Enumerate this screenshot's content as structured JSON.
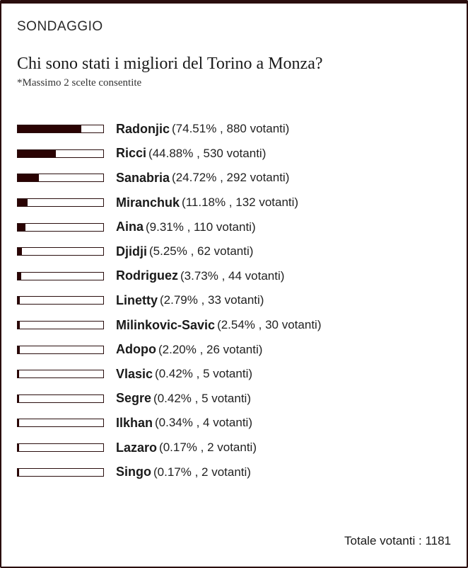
{
  "poll": {
    "label": "SONDAGGIO",
    "question": "Chi sono stati i migliori del Torino a Monza?",
    "note": "*Massimo 2 scelte consentite",
    "total_label": "Totale votanti",
    "total_separator": ":",
    "total_value": "1181",
    "bar_color": "#2a0303",
    "options": [
      {
        "name": "Radonjic",
        "stats": "(74.51% , 880 votanti)",
        "percent": 74.51
      },
      {
        "name": "Ricci",
        "stats": "(44.88% , 530 votanti)",
        "percent": 44.88
      },
      {
        "name": "Sanabria",
        "stats": "(24.72% , 292 votanti)",
        "percent": 24.72
      },
      {
        "name": "Miranchuk",
        "stats": "(11.18% , 132 votanti)",
        "percent": 11.18
      },
      {
        "name": "Aina",
        "stats": "(9.31% , 110 votanti)",
        "percent": 9.31
      },
      {
        "name": "Djidji",
        "stats": "(5.25% , 62 votanti)",
        "percent": 5.25
      },
      {
        "name": "Rodriguez",
        "stats": "(3.73% , 44 votanti)",
        "percent": 3.73
      },
      {
        "name": "Linetty",
        "stats": "(2.79% , 33 votanti)",
        "percent": 2.79
      },
      {
        "name": "Milinkovic-Savic",
        "stats": "(2.54% , 30 votanti)",
        "percent": 2.54
      },
      {
        "name": "Adopo",
        "stats": "(2.20% , 26 votanti)",
        "percent": 2.2
      },
      {
        "name": "Vlasic",
        "stats": "(0.42% , 5 votanti)",
        "percent": 0.42
      },
      {
        "name": "Segre",
        "stats": "(0.42% , 5 votanti)",
        "percent": 0.42
      },
      {
        "name": "Ilkhan",
        "stats": "(0.34% , 4 votanti)",
        "percent": 0.34
      },
      {
        "name": "Lazaro",
        "stats": "(0.17% , 2 votanti)",
        "percent": 0.17
      },
      {
        "name": "Singo",
        "stats": "(0.17% , 2 votanti)",
        "percent": 0.17
      }
    ]
  }
}
